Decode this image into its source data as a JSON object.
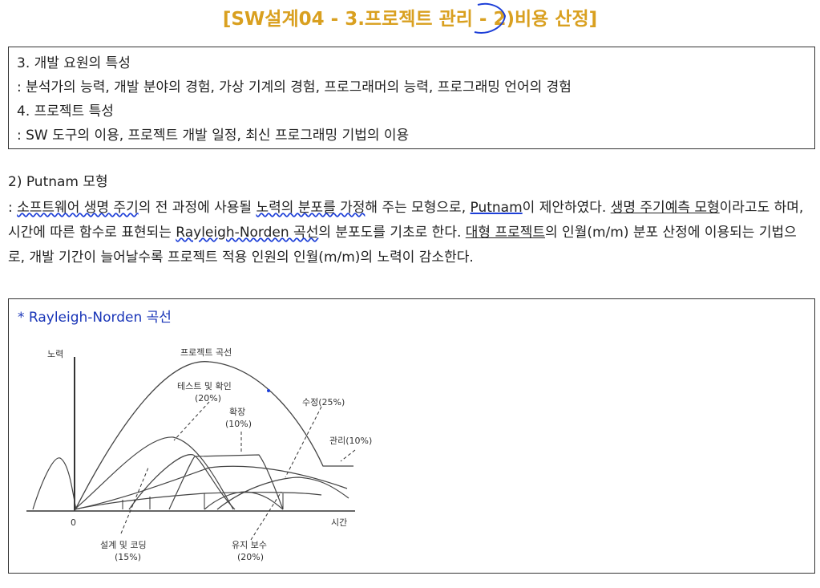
{
  "header": {
    "title": "[SW설계04 - 3.프로젝트 관리 - 2)비용 산정]"
  },
  "box1": {
    "lines": [
      "3. 개발 요원의 특성",
      ": 분석가의 능력, 개발 분야의 경험, 가상 기계의 경험, 프로그래머의 능력, 프로그래밍 언어의 경험",
      "4. 프로젝트 특성",
      ": SW 도구의 이용, 프로젝트 개발 일정, 최신 프로그래밍 기법의 이용"
    ]
  },
  "putnam": {
    "heading": "2) Putnam 모형",
    "segments": [
      ": ",
      "소프트웨어 생명 주기",
      "의 전 과정에 사용될 ",
      "노력의 분포를 가정",
      "해 주는 모형으로, ",
      "Putnam",
      "이 제안하였다. ",
      "생명 주기예측 모형",
      "이라고도 하며, 시간에 따른 함수로 표현되는 ",
      "Rayleigh-Norden 곡선",
      "의 분포도를 기초로 한다. ",
      "대형 프로젝트",
      "의 인월(m/m) 분포 산정에 이용되는 기법으로, 개발 기간이 늘어날수록 프로젝트 적용 인원의 인월(m/m)의 노력이 감소한다."
    ]
  },
  "figure": {
    "title": "* Rayleigh-Norden 곡선",
    "labels": {
      "y_axis": "노력",
      "x_axis": "시간",
      "origin": "0",
      "project_curve": "프로젝트 곡선",
      "test_line1": "테스트 및 확인",
      "test_line2": "(20%)",
      "ext_line1": "확장",
      "ext_line2": "(10%)",
      "modify": "수정(25%)",
      "manage": "관리(10%)",
      "design_line1": "설계 및 코딩",
      "design_line2": "(15%)",
      "maint_line1": "유지 보수",
      "maint_line2": "(20%)"
    }
  },
  "colors": {
    "title": "#d9a020",
    "annotation_blue": "#1d3fd8",
    "figure_title": "#1a36b8"
  }
}
